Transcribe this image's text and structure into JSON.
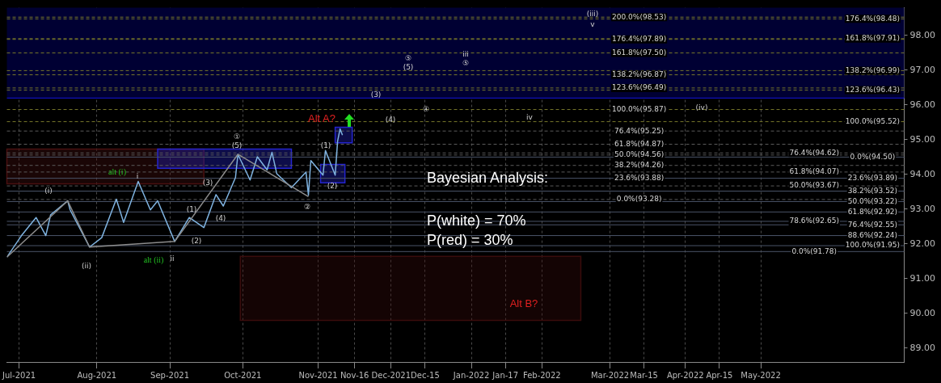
{
  "chart_data": {
    "type": "line",
    "xlim": [
      "2021-06-26",
      "2022-06-30"
    ],
    "ylim": [
      88.6,
      98.8
    ],
    "xticks": [
      {
        "value": "2021-07-01",
        "label": "Jul-2021"
      },
      {
        "value": "2021-08-02",
        "label": "Aug-2021"
      },
      {
        "value": "2021-09-01",
        "label": "Sep-2021"
      },
      {
        "value": "2021-10-01",
        "label": "Oct-2021"
      },
      {
        "value": "2021-11-01",
        "label": "Nov-2021"
      },
      {
        "value": "2021-11-16",
        "label": "Nov-16"
      },
      {
        "value": "2021-12-01",
        "label": "Dec-2021"
      },
      {
        "value": "2021-12-15",
        "label": "Dec-15"
      },
      {
        "value": "2022-01-03",
        "label": "Jan-2022"
      },
      {
        "value": "2022-01-17",
        "label": "Jan-17"
      },
      {
        "value": "2022-02-01",
        "label": "Feb-2022"
      },
      {
        "value": "2022-03-01",
        "label": "Mar-2022"
      },
      {
        "value": "2022-03-15",
        "label": "Mar-15"
      },
      {
        "value": "2022-04-01",
        "label": "Apr-2022"
      },
      {
        "value": "2022-04-15",
        "label": "Apr-15"
      },
      {
        "value": "2022-05-02",
        "label": "May-2022"
      }
    ],
    "yticks": [
      {
        "value": 89,
        "label": "89.00"
      },
      {
        "value": 90,
        "label": "90.00"
      },
      {
        "value": 91,
        "label": "91.00"
      },
      {
        "value": 92,
        "label": "92.00"
      },
      {
        "value": 93,
        "label": "93.00"
      },
      {
        "value": 94,
        "label": "94.00"
      },
      {
        "value": 95,
        "label": "95.00"
      },
      {
        "value": 96,
        "label": "96.00"
      },
      {
        "value": 97,
        "label": "97.00"
      },
      {
        "value": 98,
        "label": "98.00"
      }
    ],
    "grid": "x",
    "marker": "none",
    "series": [
      {
        "type": "area",
        "color": "#4a1010",
        "x": [
          "2021-06-26",
          "2021-09-15"
        ],
        "values": [
          null,
          null
        ],
        "lower": [
          93.73,
          93.73
        ],
        "upper": [
          94.73,
          94.73
        ]
      },
      {
        "type": "area",
        "color": "#3a0c0c",
        "x": [
          "2021-09-30",
          "2022-02-17"
        ],
        "values": [
          null,
          null
        ],
        "lower": [
          89.8,
          89.8
        ],
        "upper": [
          91.64,
          91.64
        ]
      },
      {
        "type": "area",
        "color": "#2424d0",
        "x": [
          "2021-08-27",
          "2021-10-21"
        ],
        "values": [
          null,
          null
        ],
        "lower": [
          94.18,
          94.18
        ],
        "upper": [
          94.73,
          94.73
        ]
      },
      {
        "type": "area",
        "color": "#2424d0",
        "x": [
          "2021-11-02",
          "2021-11-12"
        ],
        "values": [
          null,
          null
        ],
        "lower": [
          93.76,
          93.76
        ],
        "upper": [
          94.29,
          94.29
        ]
      },
      {
        "type": "area",
        "color": "#2424d0",
        "x": [
          "2021-11-08",
          "2021-11-15"
        ],
        "values": [
          null,
          null
        ],
        "lower": [
          94.91,
          94.91
        ],
        "upper": [
          95.36,
          95.36
        ]
      },
      {
        "color": "#8c8c8c",
        "x": [
          "2021-06-26",
          "2021-07-21",
          "2021-07-30",
          "2021-09-03",
          "2021-09-29",
          "2021-10-28"
        ],
        "values": [
          91.62,
          93.24,
          91.91,
          92.07,
          94.58,
          93.36
        ]
      },
      {
        "color": "#7fb3e0",
        "x": [
          "2021-06-26",
          "2021-07-02",
          "2021-07-08",
          "2021-07-12",
          "2021-07-14",
          "2021-07-21",
          "2021-07-22",
          "2021-07-30",
          "2021-08-04",
          "2021-08-10",
          "2021-08-13",
          "2021-08-19",
          "2021-08-24",
          "2021-08-27",
          "2021-09-03",
          "2021-09-09",
          "2021-09-15",
          "2021-09-20",
          "2021-09-23",
          "2021-09-28",
          "2021-09-29",
          "2021-10-04",
          "2021-10-07",
          "2021-10-11",
          "2021-10-13",
          "2021-10-15",
          "2021-10-21",
          "2021-10-27",
          "2021-10-28",
          "2021-10-29",
          "2021-11-03",
          "2021-11-04",
          "2021-11-08",
          "2021-11-09",
          "2021-11-10",
          "2021-11-11"
        ],
        "values": [
          91.62,
          92.24,
          92.76,
          92.24,
          92.84,
          93.24,
          92.98,
          91.91,
          92.18,
          93.29,
          92.62,
          93.8,
          92.98,
          93.24,
          92.07,
          92.76,
          92.47,
          93.42,
          93.09,
          93.91,
          94.58,
          93.84,
          94.51,
          94.13,
          94.64,
          94.02,
          93.62,
          94.07,
          93.4,
          94.4,
          93.98,
          94.69,
          93.98,
          94.96,
          95.31,
          95.13
        ]
      }
    ],
    "bands": [
      {
        "axis": "y",
        "from": 96.2,
        "to": 98.8,
        "color": "#000033"
      }
    ],
    "ref_lines": [
      {
        "axis": "y",
        "value": 96.2,
        "color": "#1414e0",
        "line_style": "solid"
      },
      {
        "axis": "y",
        "value": 98.53,
        "color": "#77772a",
        "line_style": "dashed"
      },
      {
        "axis": "y",
        "value": 98.48,
        "color": "#77772a",
        "line_style": "dashed"
      },
      {
        "axis": "y",
        "value": 97.91,
        "color": "#77772a",
        "line_style": "dashed"
      },
      {
        "axis": "y",
        "value": 97.89,
        "color": "#77772a",
        "line_style": "dashed"
      },
      {
        "axis": "y",
        "value": 97.5,
        "color": "#77772a",
        "line_style": "dashed"
      },
      {
        "axis": "y",
        "value": 96.99,
        "color": "#77772a",
        "line_style": "dashed"
      },
      {
        "axis": "y",
        "value": 96.87,
        "color": "#77772a",
        "line_style": "dashed"
      },
      {
        "axis": "y",
        "value": 96.49,
        "color": "#77772a",
        "line_style": "dashed"
      },
      {
        "axis": "y",
        "value": 96.43,
        "color": "#77772a",
        "line_style": "dashed"
      },
      {
        "axis": "y",
        "value": 95.87,
        "color": "#77772a",
        "line_style": "dashed"
      },
      {
        "axis": "y",
        "value": 95.52,
        "color": "#77772a",
        "line_style": "dashed"
      },
      {
        "axis": "y",
        "value": 95.25,
        "color": "#5a5a5a",
        "line_style": "dashed"
      },
      {
        "axis": "y",
        "value": 94.87,
        "color": "#5a5a5a",
        "line_style": "dashed"
      },
      {
        "axis": "y",
        "value": 94.62,
        "color": "#5a5a5a",
        "line_style": "dashed"
      },
      {
        "axis": "y",
        "value": 94.56,
        "color": "#5a5a5a",
        "line_style": "dashed"
      },
      {
        "axis": "y",
        "value": 94.26,
        "color": "#5a5a5a",
        "line_style": "dashed"
      },
      {
        "axis": "y",
        "value": 94.07,
        "color": "#5a5a5a",
        "line_style": "dashed"
      },
      {
        "axis": "y",
        "value": 93.67,
        "color": "#5a5a5a",
        "line_style": "dashed"
      },
      {
        "axis": "y",
        "value": 93.28,
        "color": "#5a5a5a",
        "line_style": "dashed"
      },
      {
        "axis": "y",
        "value": 94.5,
        "color": "#4a5468",
        "line_style": "solid"
      },
      {
        "axis": "y",
        "value": 93.89,
        "color": "#4a5468",
        "line_style": "solid"
      },
      {
        "axis": "y",
        "value": 93.52,
        "color": "#4a5468",
        "line_style": "solid"
      },
      {
        "axis": "y",
        "value": 93.22,
        "color": "#4a5468",
        "line_style": "solid"
      },
      {
        "axis": "y",
        "value": 92.92,
        "color": "#4a5468",
        "line_style": "solid"
      },
      {
        "axis": "y",
        "value": 92.65,
        "color": "#4a5468",
        "line_style": "solid"
      },
      {
        "axis": "y",
        "value": 92.55,
        "color": "#4a5468",
        "line_style": "solid"
      },
      {
        "axis": "y",
        "value": 92.24,
        "color": "#4a5468",
        "line_style": "solid"
      },
      {
        "axis": "y",
        "value": 91.95,
        "color": "#4a5468",
        "line_style": "solid"
      },
      {
        "axis": "y",
        "value": 91.78,
        "color": "#4a5468",
        "line_style": "solid"
      }
    ],
    "annotations": [
      "Bayesian Analysis:",
      "P(white) = 70%",
      "P(red) = 30%",
      "(i)",
      "(ii)",
      "alt (i)",
      "i",
      "alt (ii)",
      "ii",
      "(1)",
      "(2)",
      "(3)",
      "(4)",
      "①",
      "(5)",
      "②",
      "(1)",
      "(2)",
      "Alt A?",
      "(3)",
      "(4)",
      "④",
      "⑤",
      "(5)",
      "iii",
      "⑤",
      "iv",
      "(iii)",
      "v",
      "(iv)",
      "Alt B?",
      {
        "text": "200.0%(98.53)",
        "x": "2022-03-13",
        "y": 98.53
      },
      {
        "text": "176.4%(97.89)",
        "x": "2022-03-13",
        "y": 97.89
      },
      {
        "text": "161.8%(97.50)",
        "x": "2022-03-13",
        "y": 97.5
      },
      {
        "text": "138.2%(96.87)",
        "x": "2022-03-13",
        "y": 96.87
      },
      {
        "text": "123.6%(96.49)",
        "x": "2022-03-13",
        "y": 96.49
      },
      {
        "text": "100.0%(95.87)",
        "x": "2022-03-13",
        "y": 95.87
      },
      {
        "text": "76.4%(95.25)",
        "x": "2022-03-13",
        "y": 95.25
      },
      {
        "text": "61.8%(94.87)",
        "x": "2022-03-13",
        "y": 94.87
      },
      {
        "text": "50.0%(94.56)",
        "x": "2022-03-13",
        "y": 94.56
      },
      {
        "text": "38.2%(94.26)",
        "x": "2022-03-13",
        "y": 94.26
      },
      {
        "text": "23.6%(93.88)",
        "x": "2022-03-13",
        "y": 93.88
      },
      {
        "text": "0.0%(93.28)",
        "x": "2022-03-13",
        "y": 93.28
      },
      {
        "text": "176.4%(98.48)",
        "x": "2022-06-17",
        "y": 98.48
      },
      {
        "text": "161.8%(97.91)",
        "x": "2022-06-17",
        "y": 97.91
      },
      {
        "text": "138.2%(96.99)",
        "x": "2022-06-17",
        "y": 96.99
      },
      {
        "text": "123.6%(96.43)",
        "x": "2022-06-17",
        "y": 96.43
      },
      {
        "text": "100.0%(95.52)",
        "x": "2022-06-17",
        "y": 95.52
      },
      {
        "text": "0.0%(94.50)",
        "x": "2022-06-17",
        "y": 94.5
      },
      {
        "text": "23.6%(93.89)",
        "x": "2022-06-17",
        "y": 93.89
      },
      {
        "text": "38.2%(93.52)",
        "x": "2022-06-17",
        "y": 93.52
      },
      {
        "text": "50.0%(93.22)",
        "x": "2022-06-17",
        "y": 93.22
      },
      {
        "text": "61.8%(92.92)",
        "x": "2022-06-17",
        "y": 92.92
      },
      {
        "text": "76.4%(92.55)",
        "x": "2022-06-17",
        "y": 92.55
      },
      {
        "text": "88.6%(92.24)",
        "x": "2022-06-17",
        "y": 92.24
      },
      {
        "text": "100.0%(91.95)",
        "x": "2022-06-17",
        "y": 91.95
      },
      {
        "text": "76.4%(94.62)",
        "x": "2022-05-24",
        "y": 94.62
      },
      {
        "text": "61.8%(94.07)",
        "x": "2022-05-24",
        "y": 94.07
      },
      {
        "text": "50.0%(93.67)",
        "x": "2022-05-24",
        "y": 93.67
      },
      {
        "text": "78.6%(92.65)",
        "x": "2022-05-24",
        "y": 92.65
      },
      {
        "text": "0.0%(91.78)",
        "x": "2022-05-24",
        "y": 91.78
      }
    ]
  }
}
